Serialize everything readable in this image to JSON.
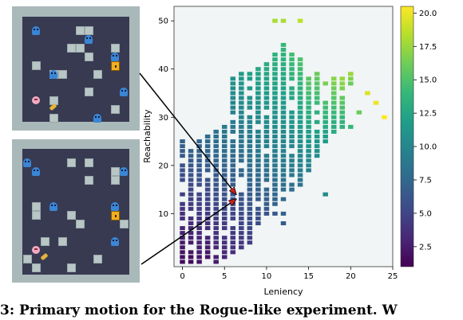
{
  "chart_data": {
    "type": "heatmap",
    "title": "",
    "xlabel": "Leniency",
    "ylabel": "Reachability",
    "xlim": [
      -1,
      25
    ],
    "ylim": [
      -1,
      53
    ],
    "x_ticks": [
      0,
      5,
      10,
      15,
      20,
      25
    ],
    "y_ticks": [
      10,
      20,
      30,
      40,
      50
    ],
    "colorbar": {
      "colormap": "viridis",
      "range": [
        1,
        20.5
      ],
      "ticks": [
        "2.5",
        "5.0",
        "7.5",
        "10.0",
        "12.5",
        "15.0",
        "17.5",
        "20.0"
      ]
    },
    "plot_background": "#f1f5f5",
    "grid": false,
    "legend": "none",
    "cell_columns": [
      {
        "x": 0,
        "y_from": 0,
        "y_to": 25,
        "v_low": 1.5,
        "v_high": 7
      },
      {
        "x": 1,
        "y_from": 0,
        "y_to": 23,
        "v_low": 1.5,
        "v_high": 7
      },
      {
        "x": 2,
        "y_from": 0,
        "y_to": 25,
        "v_low": 2,
        "v_high": 7.5
      },
      {
        "x": 3,
        "y_from": 1,
        "y_to": 26,
        "v_low": 2,
        "v_high": 8
      },
      {
        "x": 4,
        "y_from": 0,
        "y_to": 27,
        "v_low": 2.5,
        "v_high": 8.5
      },
      {
        "x": 5,
        "y_from": 1,
        "y_to": 28,
        "v_low": 3,
        "v_high": 9
      },
      {
        "x": 6,
        "y_from": 2,
        "y_to": 38,
        "v_low": 3.5,
        "v_high": 11
      },
      {
        "x": 7,
        "y_from": 3,
        "y_to": 39,
        "v_low": 4,
        "v_high": 11.5
      },
      {
        "x": 8,
        "y_from": 4,
        "y_to": 39,
        "v_low": 4.5,
        "v_high": 12
      },
      {
        "x": 9,
        "y_from": 8,
        "y_to": 40,
        "v_low": 5.5,
        "v_high": 12.5
      },
      {
        "x": 10,
        "y_from": 11,
        "y_to": 41,
        "v_low": 6.5,
        "v_high": 13
      },
      {
        "x": 11,
        "y_from": 12,
        "y_to": 43,
        "v_low": 7,
        "v_high": 13.5
      },
      {
        "x": 12,
        "y_from": 13,
        "y_to": 45,
        "v_low": 7.5,
        "v_high": 14
      },
      {
        "x": 13,
        "y_from": 15,
        "y_to": 43,
        "v_low": 8,
        "v_high": 14.5
      },
      {
        "x": 14,
        "y_from": 16,
        "y_to": 42,
        "v_low": 8.5,
        "v_high": 15
      },
      {
        "x": 15,
        "y_from": 19,
        "y_to": 38,
        "v_low": 9.5,
        "v_high": 15.5
      },
      {
        "x": 16,
        "y_from": 22,
        "y_to": 39,
        "v_low": 10.5,
        "v_high": 16
      },
      {
        "x": 17,
        "y_from": 25,
        "y_to": 37,
        "v_low": 11.5,
        "v_high": 16.5
      },
      {
        "x": 18,
        "y_from": 27,
        "y_to": 38,
        "v_low": 12.5,
        "v_high": 17
      },
      {
        "x": 19,
        "y_from": 29,
        "y_to": 38,
        "v_low": 13.5,
        "v_high": 17.5
      },
      {
        "x": 20,
        "y_from": 37,
        "y_to": 39,
        "v_low": 16,
        "v_high": 17.5
      }
    ],
    "extra_cells": [
      {
        "x": 11,
        "y": 50,
        "v": 18
      },
      {
        "x": 12,
        "y": 50,
        "v": 18
      },
      {
        "x": 14,
        "y": 50,
        "v": 18.5
      },
      {
        "x": 10,
        "y": 10,
        "v": 6
      },
      {
        "x": 11,
        "y": 10,
        "v": 6.5
      },
      {
        "x": 12,
        "y": 10,
        "v": 7
      },
      {
        "x": 12,
        "y": 8,
        "v": 6.5
      },
      {
        "x": 17,
        "y": 14,
        "v": 10.5
      },
      {
        "x": 18,
        "y": 27,
        "v": 13
      },
      {
        "x": 19,
        "y": 28,
        "v": 13.5
      },
      {
        "x": 20,
        "y": 28,
        "v": 14
      },
      {
        "x": 21,
        "y": 31,
        "v": 16
      },
      {
        "x": 22,
        "y": 35,
        "v": 19.5
      },
      {
        "x": 23,
        "y": 33,
        "v": 20
      },
      {
        "x": 24,
        "y": 30,
        "v": 20.5
      }
    ],
    "arrows": [
      {
        "from_panel": "top",
        "to": {
          "x": 6,
          "y": 14
        }
      },
      {
        "from_panel": "bottom",
        "to": {
          "x": 6,
          "y": 13
        }
      }
    ]
  },
  "levels": {
    "top": {
      "tiles": [
        [
          6,
          1
        ],
        [
          7,
          1
        ],
        [
          10,
          3
        ],
        [
          5,
          3
        ],
        [
          7,
          4
        ],
        [
          1,
          5
        ],
        [
          8,
          6
        ],
        [
          4,
          6
        ],
        [
          3,
          6
        ],
        [
          7,
          8
        ],
        [
          3,
          9
        ],
        [
          10,
          10
        ],
        [
          3,
          11
        ],
        [
          6,
          3
        ]
      ],
      "ghosts": [
        [
          1,
          1
        ],
        [
          7,
          2
        ],
        [
          10,
          4
        ],
        [
          3,
          6
        ],
        [
          11,
          8
        ],
        [
          8,
          11
        ]
      ],
      "door": [
        10,
        5
      ],
      "player": [
        1,
        9
      ],
      "key": [
        3,
        10
      ]
    },
    "bottom": {
      "tiles": [
        [
          5,
          1
        ],
        [
          7,
          1
        ],
        [
          7,
          3
        ],
        [
          10,
          3
        ],
        [
          1,
          6
        ],
        [
          1,
          7
        ],
        [
          6,
          8
        ],
        [
          11,
          8
        ],
        [
          5,
          7
        ],
        [
          4,
          10
        ],
        [
          2,
          10
        ],
        [
          8,
          12
        ],
        [
          0,
          12
        ],
        [
          1,
          13
        ],
        [
          10,
          2
        ],
        [
          5,
          13
        ]
      ],
      "ghosts": [
        [
          0,
          1
        ],
        [
          1,
          2
        ],
        [
          11,
          2
        ],
        [
          3,
          6
        ],
        [
          10,
          6
        ],
        [
          10,
          10
        ]
      ],
      "door": [
        10,
        7
      ],
      "player": [
        1,
        11
      ],
      "key": [
        2,
        12
      ]
    }
  },
  "caption": "3: Primary motion for the Rogue-like experiment. W"
}
